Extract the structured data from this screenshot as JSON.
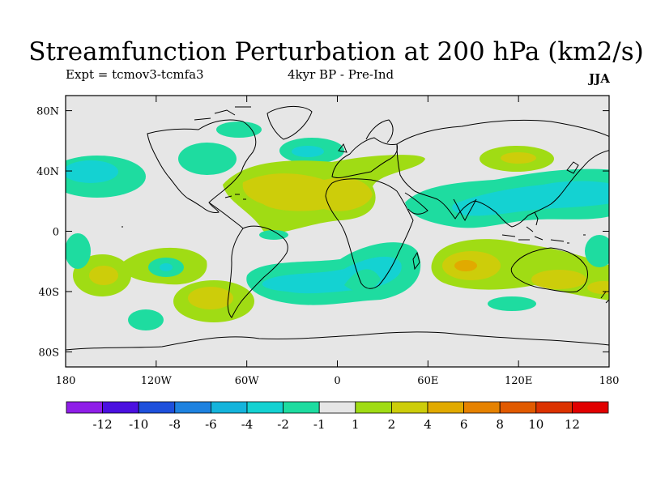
{
  "title": "Streamfunction Perturbation at 200 hPa (km2/s)",
  "experiment_label": "Expt = tcmov3-tcmfa3",
  "period_label": "4kyr BP - Pre-Ind",
  "season_label": "JJA",
  "colors": {
    "ocean_background": "#e6e6e6",
    "coastline": "#000000"
  },
  "map_data": {
    "projection": "cylindrical-equidistant",
    "lat_ticks": [
      "80N",
      "40N",
      "0",
      "40S",
      "80S"
    ],
    "lon_ticks": [
      "180",
      "120W",
      "60W",
      "0",
      "60E",
      "120E",
      "180"
    ],
    "lat_values": [
      80,
      40,
      0,
      -40,
      -80
    ],
    "lon_values": [
      -180,
      -120,
      -60,
      0,
      60,
      120,
      180
    ],
    "lat_range": [
      -90,
      90
    ],
    "lon_range": [
      -180,
      180
    ]
  },
  "colorbar": {
    "labels": [
      "-12",
      "-10",
      "-8",
      "-6",
      "-4",
      "-2",
      "-1",
      "1",
      "2",
      "4",
      "6",
      "8",
      "10",
      "12"
    ],
    "colors": [
      "#8f1ee8",
      "#4b10e0",
      "#1e50dc",
      "#1e82e0",
      "#14b4dc",
      "#14d2d2",
      "#1edca0",
      "#e6e6e6",
      "#a0dc14",
      "#cdcd0a",
      "#e1aa00",
      "#e68200",
      "#e15a00",
      "#dc3200",
      "#e10000"
    ]
  }
}
